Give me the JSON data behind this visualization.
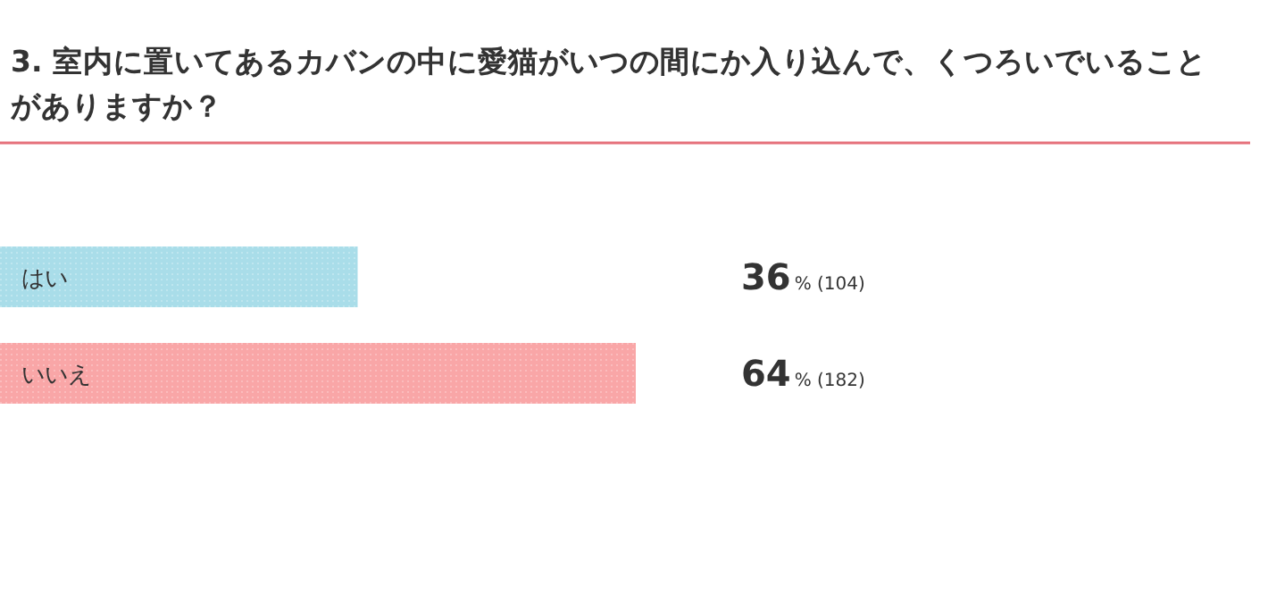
{
  "chart_data": {
    "type": "bar",
    "orientation": "horizontal",
    "title": "3. 室内に置いてあるカバンの中に愛猫がいつの間にか入り込んで、くつろいでいることがありますか？",
    "categories": [
      "はい",
      "いいえ"
    ],
    "values": [
      36,
      64
    ],
    "colors": [
      "#a9dde9",
      "#f9a6a7"
    ],
    "value_labels": [
      "36% (104)",
      "64% (182)"
    ]
  }
}
